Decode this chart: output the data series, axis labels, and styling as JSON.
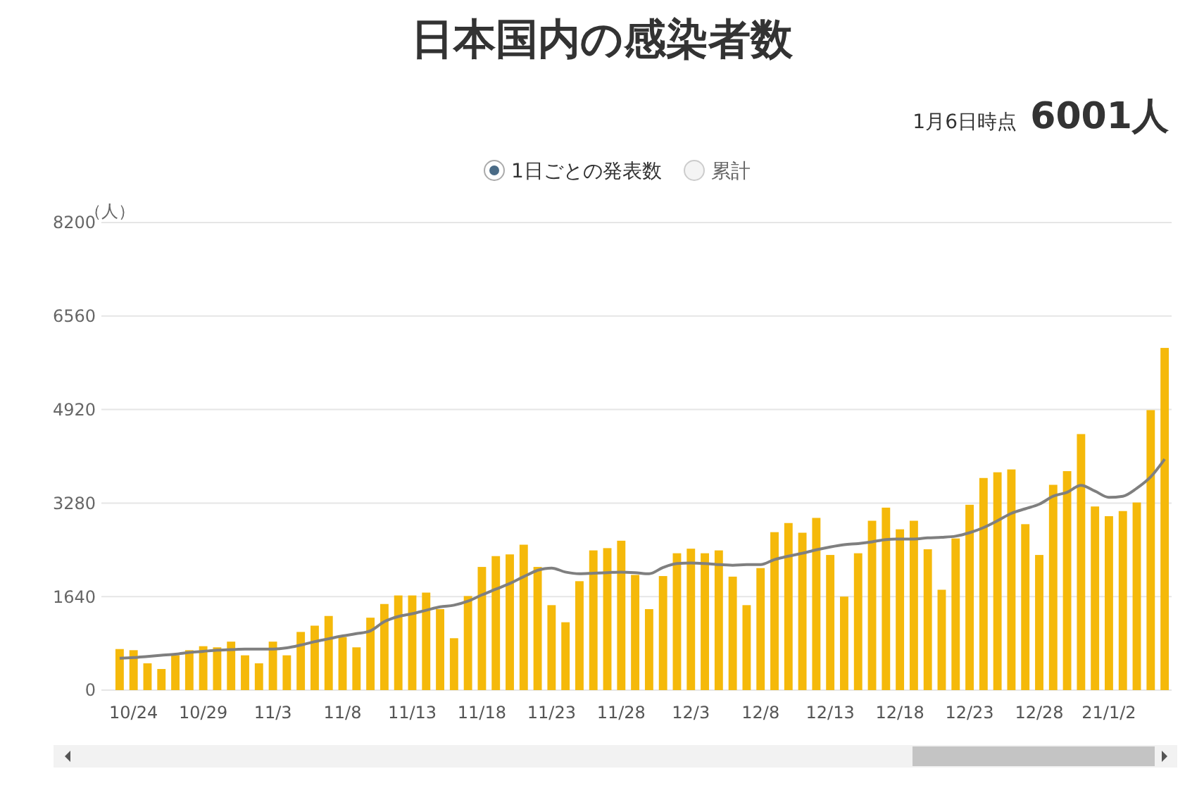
{
  "chart_data": {
    "type": "bar",
    "title": "日本国内の感染者数",
    "ylabel": "（人）",
    "annotations": [
      "1月6日時点",
      "6001人",
      "1日ごとの発表数",
      "累計"
    ],
    "categories": [
      null,
      "10/24",
      null,
      null,
      null,
      null,
      "10/29",
      null,
      null,
      null,
      null,
      "11/3",
      null,
      null,
      null,
      null,
      "11/8",
      null,
      null,
      null,
      null,
      "11/13",
      null,
      null,
      null,
      null,
      "11/18",
      null,
      null,
      null,
      null,
      "11/23",
      null,
      null,
      null,
      null,
      "11/28",
      null,
      null,
      null,
      null,
      "12/3",
      null,
      null,
      null,
      null,
      "12/8",
      null,
      null,
      null,
      null,
      "12/13",
      null,
      null,
      null,
      null,
      "12/18",
      null,
      null,
      null,
      null,
      "12/23",
      null,
      null,
      null,
      null,
      "12/28",
      null,
      null,
      null,
      null,
      "21/1/2",
      null,
      null,
      null,
      null
    ],
    "series": [
      {
        "color": "#f5b90a",
        "values": [
          720,
          700,
          470,
          370,
          610,
          700,
          770,
          750,
          850,
          610,
          470,
          850,
          610,
          1020,
          1130,
          1300,
          930,
          750,
          1270,
          1510,
          1660,
          1660,
          1710,
          1420,
          910,
          1650,
          2160,
          2350,
          2380,
          2550,
          2160,
          1490,
          1190,
          1910,
          2450,
          2490,
          2620,
          2020,
          1420,
          2000,
          2400,
          2480,
          2400,
          2450,
          1990,
          1490,
          2140,
          2770,
          2930,
          2760,
          3020,
          2370,
          1640,
          2400,
          2970,
          3200,
          2820,
          2970,
          2470,
          1760,
          2660,
          3250,
          3720,
          3820,
          3870,
          2910,
          2370,
          3600,
          3840,
          4490,
          3220,
          3050,
          3140,
          3290,
          4910,
          6001
        ]
      },
      {
        "type": "line",
        "color": "#7f7f7f",
        "values": [
          560,
          570,
          590,
          610,
          630,
          660,
          680,
          700,
          710,
          720,
          720,
          720,
          740,
          790,
          850,
          900,
          950,
          990,
          1040,
          1200,
          1290,
          1340,
          1400,
          1460,
          1490,
          1560,
          1670,
          1770,
          1870,
          1990,
          2100,
          2140,
          2070,
          2040,
          2050,
          2060,
          2070,
          2060,
          2040,
          2150,
          2220,
          2230,
          2220,
          2200,
          2190,
          2200,
          2200,
          2290,
          2350,
          2400,
          2460,
          2510,
          2550,
          2570,
          2600,
          2640,
          2650,
          2650,
          2670,
          2680,
          2700,
          2760,
          2850,
          2970,
          3100,
          3180,
          3260,
          3400,
          3470,
          3590,
          3490,
          3380,
          3400,
          3540,
          3740,
          4050
        ]
      }
    ],
    "ylim": [
      0,
      8200
    ],
    "yticks": [
      0,
      1640,
      3280,
      4920,
      6560,
      8200
    ],
    "grid": "y"
  }
}
